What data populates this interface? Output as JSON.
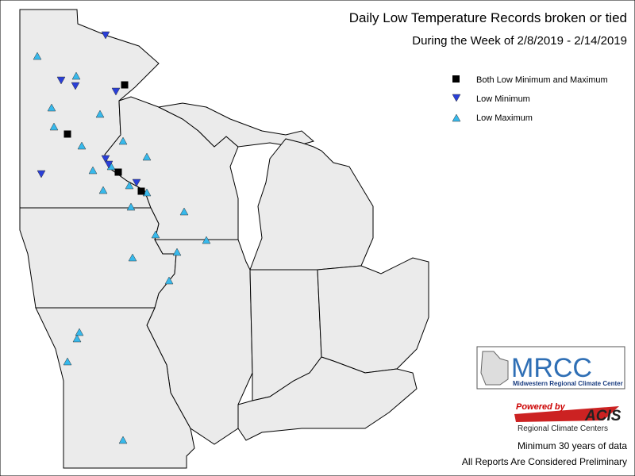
{
  "header": {
    "title": "Daily Low Temperature Records broken or tied",
    "subtitle": "During the Week of 2/8/2019 - 2/14/2019"
  },
  "legend": {
    "items": [
      "Both Low Minimum and Maximum",
      "Low Minimum",
      "Low Maximum"
    ]
  },
  "logo": {
    "name": "MRCC",
    "full": "Midwestern Regional Climate Center",
    "powered": "Powered by",
    "acis": "ACIS",
    "acis_sub": "Regional Climate Centers"
  },
  "footer": {
    "lines": [
      "Minimum 30 years of data",
      "All Reports Are Considered Preliminary"
    ]
  }
}
